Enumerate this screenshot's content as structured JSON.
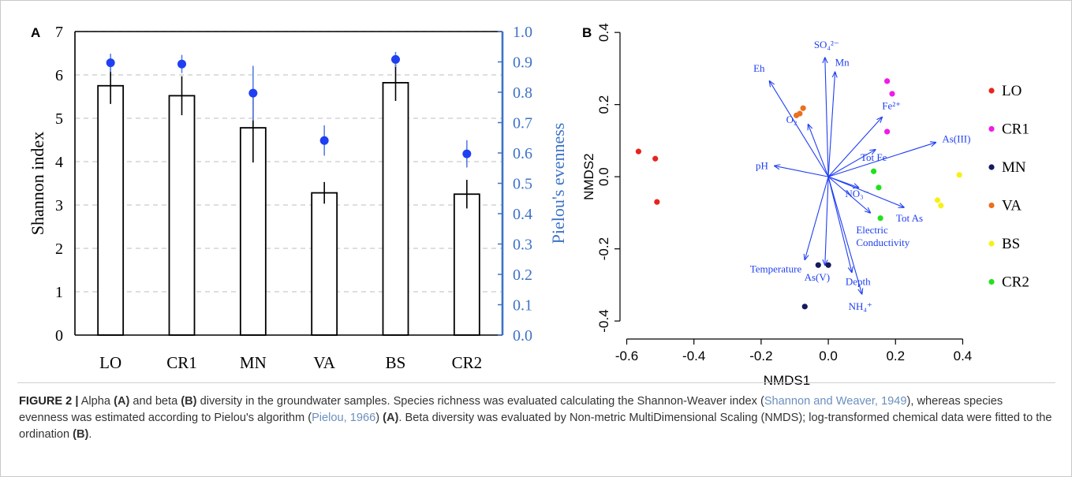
{
  "figure_label": "FIGURE 2 |",
  "caption": [
    {
      "t": " Alpha "
    },
    {
      "b": "(A)"
    },
    {
      "t": " and beta "
    },
    {
      "b": "(B)"
    },
    {
      "t": " diversity in the groundwater samples. Species richness was evaluated calculating the Shannon-Weaver index ("
    },
    {
      "c": "Shannon and Weaver, 1949"
    },
    {
      "t": "), whereas species evenness was estimated according to Pielou's algorithm ("
    },
    {
      "c": "Pielou, 1966"
    },
    {
      "t": ") "
    },
    {
      "b": "(A)"
    },
    {
      "t": ". Beta diversity was evaluated by Non-metric MultiDimensional Scaling (NMDS); log-transformed chemical data were fitted to the ordination "
    },
    {
      "b": "(B)"
    },
    {
      "t": "."
    }
  ],
  "chart_data": [
    {
      "panel": "A",
      "type": "bar",
      "categories": [
        "LO",
        "CR1",
        "MN",
        "VA",
        "BS",
        "CR2"
      ],
      "ylabel": "Shannon index",
      "y2label": "Pielou's evenness",
      "ylim": [
        0,
        7
      ],
      "y2lim": [
        0,
        1.0
      ],
      "yticks": [
        "0",
        "1",
        "2",
        "3",
        "4",
        "5",
        "6",
        "7"
      ],
      "y2ticks": [
        "0.0",
        "0.1",
        "0.2",
        "0.3",
        "0.4",
        "0.5",
        "0.6",
        "0.7",
        "0.8",
        "0.9",
        "1.0"
      ],
      "series": [
        {
          "name": "Shannon index",
          "kind": "bar",
          "values": [
            5.75,
            5.52,
            4.78,
            3.28,
            5.82,
            3.25
          ],
          "errors": [
            0.42,
            0.45,
            0.8,
            0.25,
            0.42,
            0.33
          ]
        },
        {
          "name": "Pielou's evenness",
          "kind": "point",
          "axis": "y2",
          "values": [
            0.897,
            0.893,
            0.797,
            0.641,
            0.908,
            0.597
          ],
          "errors": [
            0.03,
            0.03,
            0.09,
            0.05,
            0.025,
            0.045
          ]
        }
      ],
      "grid": "horizontal-dashed",
      "colors": {
        "bars": "#000000",
        "points": "#1f3ff2",
        "right_axis": "#3d72c7"
      }
    },
    {
      "panel": "B",
      "type": "scatter",
      "xlabel": "NMDS1",
      "ylabel": "NMDS2",
      "xlim": [
        -0.62,
        0.46
      ],
      "ylim": [
        -0.45,
        0.42
      ],
      "xticks": [
        "-0.6",
        "-0.4",
        "-0.2",
        "0.0",
        "0.2",
        "0.4"
      ],
      "yticks": [
        "-0.4",
        "-0.2",
        "0.0",
        "0.2",
        "0.4"
      ],
      "series": [
        {
          "name": "LO",
          "color": "#e8231e",
          "points": [
            [
              -0.565,
              0.07
            ],
            [
              -0.515,
              0.05
            ],
            [
              -0.51,
              -0.07
            ]
          ]
        },
        {
          "name": "CR1",
          "color": "#f01be6",
          "points": [
            [
              0.175,
              0.265
            ],
            [
              0.19,
              0.23
            ],
            [
              0.175,
              0.125
            ]
          ]
        },
        {
          "name": "MN",
          "color": "#141a5c",
          "points": [
            [
              -0.03,
              -0.245
            ],
            [
              0.0,
              -0.245
            ],
            [
              -0.07,
              -0.36
            ]
          ]
        },
        {
          "name": "VA",
          "color": "#e8701e",
          "points": [
            [
              -0.095,
              0.17
            ],
            [
              -0.085,
              0.175
            ],
            [
              -0.075,
              0.19
            ]
          ]
        },
        {
          "name": "BS",
          "color": "#f6f01a",
          "points": [
            [
              0.39,
              0.005
            ],
            [
              0.325,
              -0.065
            ],
            [
              0.335,
              -0.08
            ]
          ]
        },
        {
          "name": "CR2",
          "color": "#22e01e",
          "points": [
            [
              0.135,
              0.015
            ],
            [
              0.15,
              -0.03
            ],
            [
              0.155,
              -0.115
            ]
          ]
        }
      ],
      "vectors": [
        {
          "label": "SO₄²⁻",
          "x": -0.01,
          "y": 0.33
        },
        {
          "label": "Mn",
          "x": 0.02,
          "y": 0.29
        },
        {
          "label": "Eh",
          "x": -0.175,
          "y": 0.265
        },
        {
          "label": "Fe²⁺",
          "x": 0.16,
          "y": 0.165
        },
        {
          "label": "O₂",
          "x": -0.06,
          "y": 0.145
        },
        {
          "label": "Tot Fe",
          "x": 0.14,
          "y": 0.075
        },
        {
          "label": "As(III)",
          "x": 0.32,
          "y": 0.095
        },
        {
          "label": "pH",
          "x": -0.16,
          "y": 0.03
        },
        {
          "label": "NO₃⁻",
          "x": 0.09,
          "y": -0.03
        },
        {
          "label": "Tot As",
          "x": 0.225,
          "y": -0.085
        },
        {
          "label": "Electric Conductivity",
          "x": 0.125,
          "y": -0.1
        },
        {
          "label": "Depth",
          "x": 0.07,
          "y": -0.265
        },
        {
          "label": "Temperature",
          "x": -0.07,
          "y": -0.23
        },
        {
          "label": "As(V)",
          "x": -0.01,
          "y": -0.245
        },
        {
          "label": "NH₄⁺",
          "x": 0.1,
          "y": -0.325
        }
      ],
      "legend_position": "right",
      "colors": {
        "vectors": "#1f3ff2"
      }
    }
  ]
}
